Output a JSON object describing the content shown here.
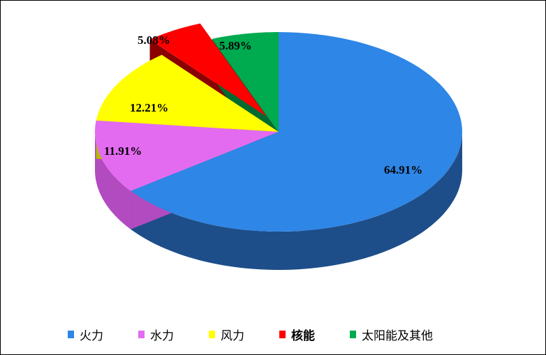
{
  "chart_data": {
    "type": "pie",
    "style": "3d-exploded",
    "start": "top",
    "direction": "clockwise",
    "legend_position": "bottom",
    "slices": [
      {
        "label": "火力",
        "value": 64.91,
        "display": "64.91%",
        "color": "#2E86E6",
        "side": "#1D4E8A"
      },
      {
        "label": "水力",
        "value": 11.91,
        "display": "11.91%",
        "color": "#E36BF0",
        "side": "#B24BC0"
      },
      {
        "label": "风力",
        "value": 12.21,
        "display": "12.21%",
        "color": "#FFFF00",
        "side": "#B8B800"
      },
      {
        "label": "核能",
        "value": 5.08,
        "display": "5.08%",
        "color": "#FF0000",
        "side": "#8A0000",
        "exploded": true
      },
      {
        "label": "太阳能及其他",
        "value": 5.89,
        "display": "5.89%",
        "color": "#00AA4F",
        "side": "#006B30"
      }
    ]
  }
}
